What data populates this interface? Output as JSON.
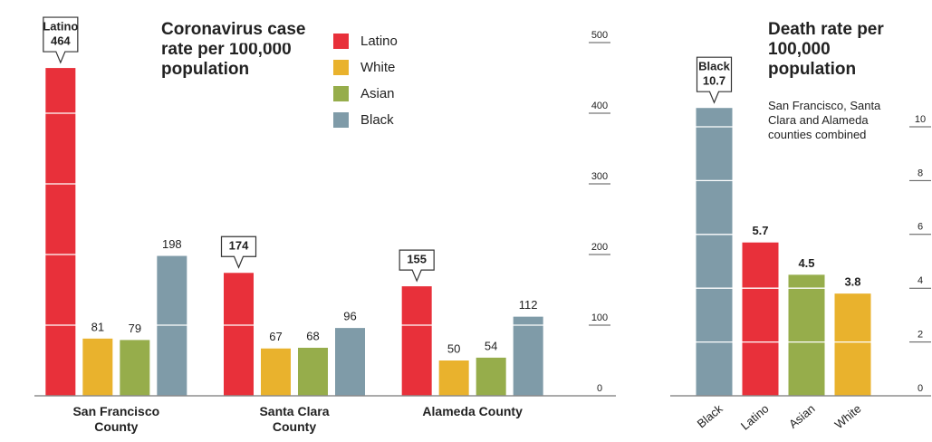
{
  "chart_data": [
    {
      "type": "bar",
      "title": "Coronavirus case rate per 100,000 population",
      "categories": [
        "San Francisco County",
        "Santa Clara County",
        "Alameda County"
      ],
      "series": [
        {
          "name": "Latino",
          "color": "#e8303a",
          "values": [
            464,
            174,
            155
          ]
        },
        {
          "name": "White",
          "color": "#e9b22d",
          "values": [
            81,
            67,
            50
          ]
        },
        {
          "name": "Asian",
          "color": "#96ad4b",
          "values": [
            79,
            68,
            54
          ]
        },
        {
          "name": "Black",
          "color": "#7f9ba8",
          "values": [
            198,
            96,
            112
          ]
        }
      ],
      "ylim": [
        0,
        500
      ],
      "yticks": [
        0,
        100,
        200,
        300,
        400,
        500
      ],
      "grid": true
    },
    {
      "type": "bar",
      "title": "Death rate per 100,000 population",
      "subtitle": "San Francisco, Santa Clara and Alameda counties combined",
      "categories": [
        "Black",
        "Latino",
        "Asian",
        "White"
      ],
      "values": [
        10.7,
        5.7,
        4.5,
        3.8
      ],
      "colors": [
        "#7f9ba8",
        "#e8303a",
        "#96ad4b",
        "#e9b22d"
      ],
      "ylim": [
        0,
        11
      ],
      "yticks": [
        0,
        2,
        4,
        6,
        8,
        10
      ],
      "grid": true
    }
  ]
}
